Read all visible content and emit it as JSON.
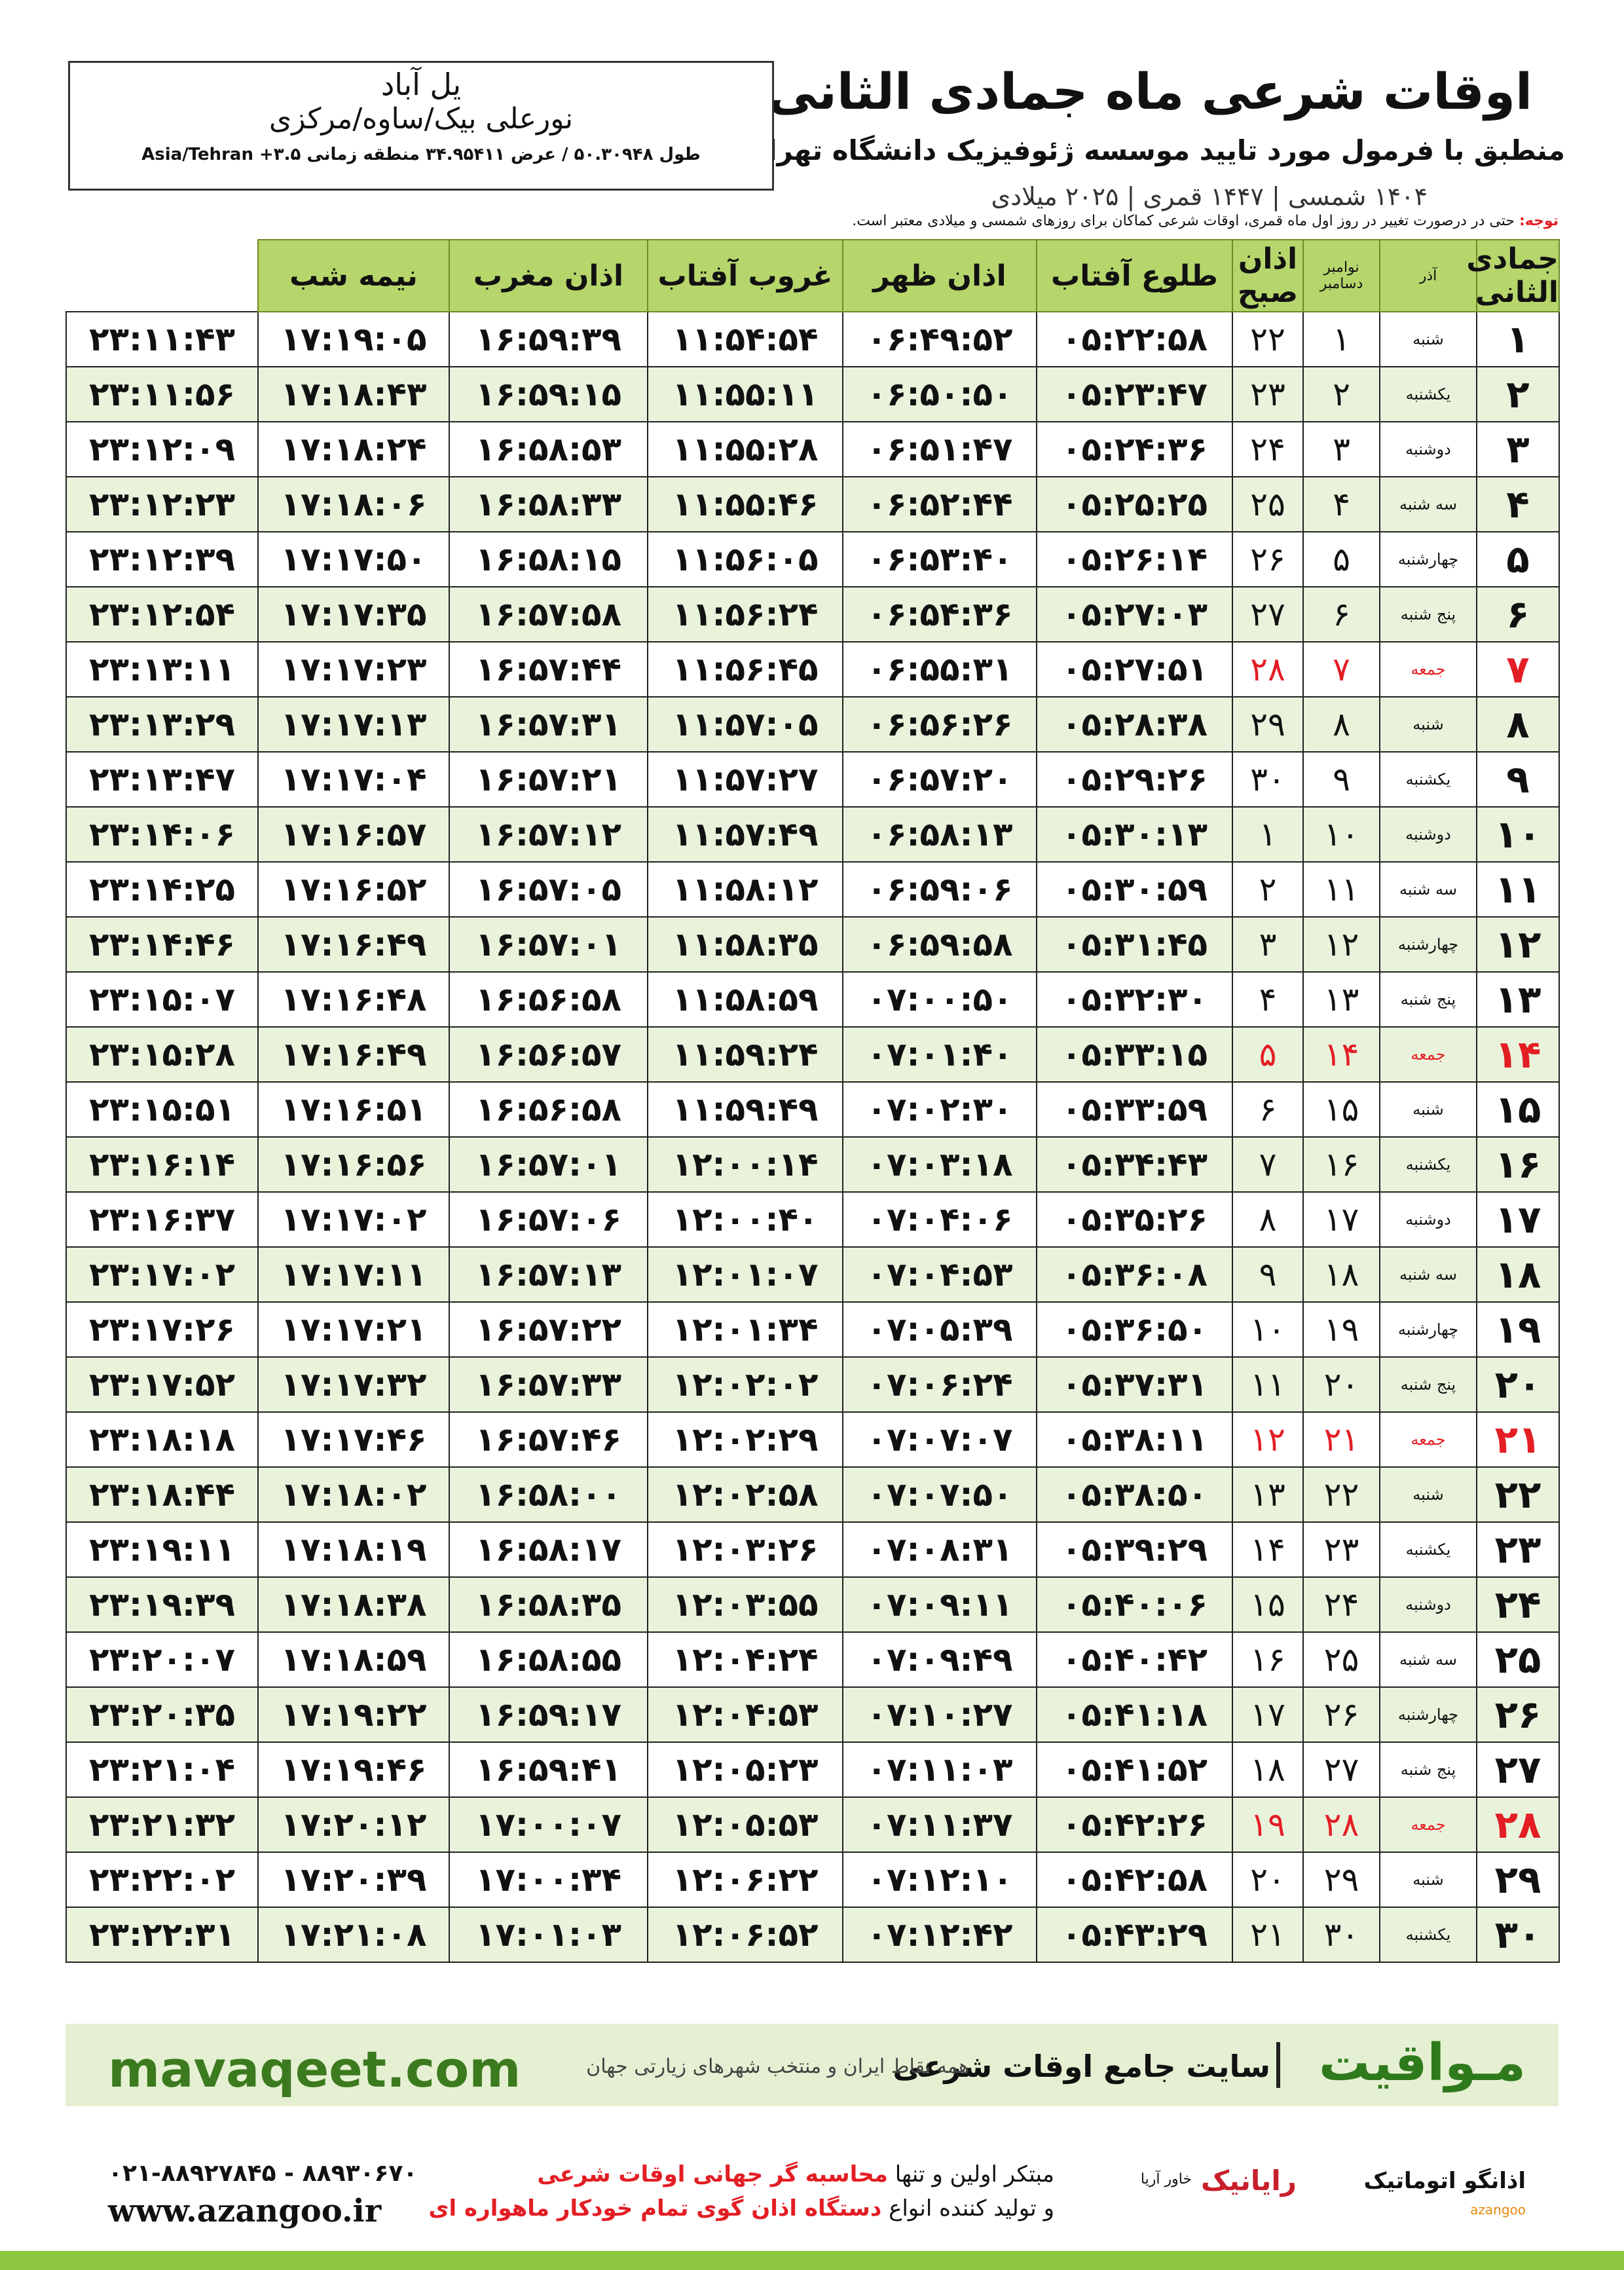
{
  "header": {
    "title": "اوقات شرعی ماه جمادی الثانی",
    "subtitle": "منطبق با فرمول مورد تایید موسسه ژئوفیزیک دانشگاه تهران",
    "dates": "۱۴۰۴ شمسی | ۱۴۴۷ قمری | ۲۰۲۵ میلادی"
  },
  "location": {
    "city": "یل آباد",
    "region": "نورعلی بیک/ساوه/مرکزی",
    "coords": "طول ۵۰.۳۰۹۴۸ / عرض ۳۴.۹۵۴۱۱ منطقه زمانی ۳.۵+ Asia/Tehran"
  },
  "note": {
    "label": "توجه:",
    "text": "حتی در درصورت تغییر در روز اول ماه قمری، اوقات شرعی کماکان برای روزهای شمسی و میلادی معتبر است."
  },
  "table": {
    "header": [
      "جمادی الثانی",
      "آذر",
      [
        "نوامبر",
        "دسامبر"
      ],
      "اذان صبح",
      "طلوع آفتاب",
      "اذان ظهر",
      "غروب آفتاب",
      "اذان مغرب",
      "نیمه شب"
    ],
    "rows": [
      {
        "color": "#111111",
        "cells": [
          "۱",
          "شنبه",
          "۱",
          "۲۲",
          "۰۵:۲۲:۵۸",
          "۰۶:۴۹:۵۲",
          "۱۱:۵۴:۵۴",
          "۱۶:۵۹:۳۹",
          "۱۷:۱۹:۰۵",
          "۲۳:۱۱:۴۳"
        ]
      },
      {
        "color": "#111111",
        "cells": [
          "۲",
          "یکشنبه",
          "۲",
          "۲۳",
          "۰۵:۲۳:۴۷",
          "۰۶:۵۰:۵۰",
          "۱۱:۵۵:۱۱",
          "۱۶:۵۹:۱۵",
          "۱۷:۱۸:۴۳",
          "۲۳:۱۱:۵۶"
        ]
      },
      {
        "color": "#111111",
        "cells": [
          "۳",
          "دوشنبه",
          "۳",
          "۲۴",
          "۰۵:۲۴:۳۶",
          "۰۶:۵۱:۴۷",
          "۱۱:۵۵:۲۸",
          "۱۶:۵۸:۵۳",
          "۱۷:۱۸:۲۴",
          "۲۳:۱۲:۰۹"
        ]
      },
      {
        "color": "#111111",
        "cells": [
          "۴",
          "سه شنبه",
          "۴",
          "۲۵",
          "۰۵:۲۵:۲۵",
          "۰۶:۵۲:۴۴",
          "۱۱:۵۵:۴۶",
          "۱۶:۵۸:۳۳",
          "۱۷:۱۸:۰۶",
          "۲۳:۱۲:۲۳"
        ]
      },
      {
        "color": "#111111",
        "cells": [
          "۵",
          "چهارشنبه",
          "۵",
          "۲۶",
          "۰۵:۲۶:۱۴",
          "۰۶:۵۳:۴۰",
          "۱۱:۵۶:۰۵",
          "۱۶:۵۸:۱۵",
          "۱۷:۱۷:۵۰",
          "۲۳:۱۲:۳۹"
        ]
      },
      {
        "color": "#111111",
        "cells": [
          "۶",
          "پنج شنبه",
          "۶",
          "۲۷",
          "۰۵:۲۷:۰۳",
          "۰۶:۵۴:۳۶",
          "۱۱:۵۶:۲۴",
          "۱۶:۵۷:۵۸",
          "۱۷:۱۷:۳۵",
          "۲۳:۱۲:۵۴"
        ]
      },
      {
        "color": "#e31e24",
        "cells": [
          "۷",
          "جمعه",
          "۷",
          "۲۸",
          "۰۵:۲۷:۵۱",
          "۰۶:۵۵:۳۱",
          "۱۱:۵۶:۴۵",
          "۱۶:۵۷:۴۴",
          "۱۷:۱۷:۲۳",
          "۲۳:۱۳:۱۱"
        ]
      },
      {
        "color": "#111111",
        "cells": [
          "۸",
          "شنبه",
          "۸",
          "۲۹",
          "۰۵:۲۸:۳۸",
          "۰۶:۵۶:۲۶",
          "۱۱:۵۷:۰۵",
          "۱۶:۵۷:۳۱",
          "۱۷:۱۷:۱۳",
          "۲۳:۱۳:۲۹"
        ]
      },
      {
        "color": "#111111",
        "cells": [
          "۹",
          "یکشنبه",
          "۹",
          "۳۰",
          "۰۵:۲۹:۲۶",
          "۰۶:۵۷:۲۰",
          "۱۱:۵۷:۲۷",
          "۱۶:۵۷:۲۱",
          "۱۷:۱۷:۰۴",
          "۲۳:۱۳:۴۷"
        ]
      },
      {
        "color": "#111111",
        "cells": [
          "۱۰",
          "دوشنبه",
          "۱۰",
          "۱",
          "۰۵:۳۰:۱۳",
          "۰۶:۵۸:۱۳",
          "۱۱:۵۷:۴۹",
          "۱۶:۵۷:۱۲",
          "۱۷:۱۶:۵۷",
          "۲۳:۱۴:۰۶"
        ]
      },
      {
        "color": "#111111",
        "cells": [
          "۱۱",
          "سه شنبه",
          "۱۱",
          "۲",
          "۰۵:۳۰:۵۹",
          "۰۶:۵۹:۰۶",
          "۱۱:۵۸:۱۲",
          "۱۶:۵۷:۰۵",
          "۱۷:۱۶:۵۲",
          "۲۳:۱۴:۲۵"
        ]
      },
      {
        "color": "#111111",
        "cells": [
          "۱۲",
          "چهارشنبه",
          "۱۲",
          "۳",
          "۰۵:۳۱:۴۵",
          "۰۶:۵۹:۵۸",
          "۱۱:۵۸:۳۵",
          "۱۶:۵۷:۰۱",
          "۱۷:۱۶:۴۹",
          "۲۳:۱۴:۴۶"
        ]
      },
      {
        "color": "#111111",
        "cells": [
          "۱۳",
          "پنج شنبه",
          "۱۳",
          "۴",
          "۰۵:۳۲:۳۰",
          "۰۷:۰۰:۵۰",
          "۱۱:۵۸:۵۹",
          "۱۶:۵۶:۵۸",
          "۱۷:۱۶:۴۸",
          "۲۳:۱۵:۰۷"
        ]
      },
      {
        "color": "#e31e24",
        "cells": [
          "۱۴",
          "جمعه",
          "۱۴",
          "۵",
          "۰۵:۳۳:۱۵",
          "۰۷:۰۱:۴۰",
          "۱۱:۵۹:۲۴",
          "۱۶:۵۶:۵۷",
          "۱۷:۱۶:۴۹",
          "۲۳:۱۵:۲۸"
        ]
      },
      {
        "color": "#111111",
        "cells": [
          "۱۵",
          "شنبه",
          "۱۵",
          "۶",
          "۰۵:۳۳:۵۹",
          "۰۷:۰۲:۳۰",
          "۱۱:۵۹:۴۹",
          "۱۶:۵۶:۵۸",
          "۱۷:۱۶:۵۱",
          "۲۳:۱۵:۵۱"
        ]
      },
      {
        "color": "#111111",
        "cells": [
          "۱۶",
          "یکشنبه",
          "۱۶",
          "۷",
          "۰۵:۳۴:۴۳",
          "۰۷:۰۳:۱۸",
          "۱۲:۰۰:۱۴",
          "۱۶:۵۷:۰۱",
          "۱۷:۱۶:۵۶",
          "۲۳:۱۶:۱۴"
        ]
      },
      {
        "color": "#111111",
        "cells": [
          "۱۷",
          "دوشنبه",
          "۱۷",
          "۸",
          "۰۵:۳۵:۲۶",
          "۰۷:۰۴:۰۶",
          "۱۲:۰۰:۴۰",
          "۱۶:۵۷:۰۶",
          "۱۷:۱۷:۰۲",
          "۲۳:۱۶:۳۷"
        ]
      },
      {
        "color": "#111111",
        "cells": [
          "۱۸",
          "سه شنبه",
          "۱۸",
          "۹",
          "۰۵:۳۶:۰۸",
          "۰۷:۰۴:۵۳",
          "۱۲:۰۱:۰۷",
          "۱۶:۵۷:۱۳",
          "۱۷:۱۷:۱۱",
          "۲۳:۱۷:۰۲"
        ]
      },
      {
        "color": "#111111",
        "cells": [
          "۱۹",
          "چهارشنبه",
          "۱۹",
          "۱۰",
          "۰۵:۳۶:۵۰",
          "۰۷:۰۵:۳۹",
          "۱۲:۰۱:۳۴",
          "۱۶:۵۷:۲۲",
          "۱۷:۱۷:۲۱",
          "۲۳:۱۷:۲۶"
        ]
      },
      {
        "color": "#111111",
        "cells": [
          "۲۰",
          "پنج شنبه",
          "۲۰",
          "۱۱",
          "۰۵:۳۷:۳۱",
          "۰۷:۰۶:۲۴",
          "۱۲:۰۲:۰۲",
          "۱۶:۵۷:۳۳",
          "۱۷:۱۷:۳۲",
          "۲۳:۱۷:۵۲"
        ]
      },
      {
        "color": "#e31e24",
        "cells": [
          "۲۱",
          "جمعه",
          "۲۱",
          "۱۲",
          "۰۵:۳۸:۱۱",
          "۰۷:۰۷:۰۷",
          "۱۲:۰۲:۲۹",
          "۱۶:۵۷:۴۶",
          "۱۷:۱۷:۴۶",
          "۲۳:۱۸:۱۸"
        ]
      },
      {
        "color": "#111111",
        "cells": [
          "۲۲",
          "شنبه",
          "۲۲",
          "۱۳",
          "۰۵:۳۸:۵۰",
          "۰۷:۰۷:۵۰",
          "۱۲:۰۲:۵۸",
          "۱۶:۵۸:۰۰",
          "۱۷:۱۸:۰۲",
          "۲۳:۱۸:۴۴"
        ]
      },
      {
        "color": "#111111",
        "cells": [
          "۲۳",
          "یکشنبه",
          "۲۳",
          "۱۴",
          "۰۵:۳۹:۲۹",
          "۰۷:۰۸:۳۱",
          "۱۲:۰۳:۲۶",
          "۱۶:۵۸:۱۷",
          "۱۷:۱۸:۱۹",
          "۲۳:۱۹:۱۱"
        ]
      },
      {
        "color": "#111111",
        "cells": [
          "۲۴",
          "دوشنبه",
          "۲۴",
          "۱۵",
          "۰۵:۴۰:۰۶",
          "۰۷:۰۹:۱۱",
          "۱۲:۰۳:۵۵",
          "۱۶:۵۸:۳۵",
          "۱۷:۱۸:۳۸",
          "۲۳:۱۹:۳۹"
        ]
      },
      {
        "color": "#111111",
        "cells": [
          "۲۵",
          "سه شنبه",
          "۲۵",
          "۱۶",
          "۰۵:۴۰:۴۲",
          "۰۷:۰۹:۴۹",
          "۱۲:۰۴:۲۴",
          "۱۶:۵۸:۵۵",
          "۱۷:۱۸:۵۹",
          "۲۳:۲۰:۰۷"
        ]
      },
      {
        "color": "#111111",
        "cells": [
          "۲۶",
          "چهارشنبه",
          "۲۶",
          "۱۷",
          "۰۵:۴۱:۱۸",
          "۰۷:۱۰:۲۷",
          "۱۲:۰۴:۵۳",
          "۱۶:۵۹:۱۷",
          "۱۷:۱۹:۲۲",
          "۲۳:۲۰:۳۵"
        ]
      },
      {
        "color": "#111111",
        "cells": [
          "۲۷",
          "پنج شنبه",
          "۲۷",
          "۱۸",
          "۰۵:۴۱:۵۲",
          "۰۷:۱۱:۰۳",
          "۱۲:۰۵:۲۳",
          "۱۶:۵۹:۴۱",
          "۱۷:۱۹:۴۶",
          "۲۳:۲۱:۰۴"
        ]
      },
      {
        "color": "#e31e24",
        "cells": [
          "۲۸",
          "جمعه",
          "۲۸",
          "۱۹",
          "۰۵:۴۲:۲۶",
          "۰۷:۱۱:۳۷",
          "۱۲:۰۵:۵۳",
          "۱۷:۰۰:۰۷",
          "۱۷:۲۰:۱۲",
          "۲۳:۲۱:۳۲"
        ]
      },
      {
        "color": "#111111",
        "cells": [
          "۲۹",
          "شنبه",
          "۲۹",
          "۲۰",
          "۰۵:۴۲:۵۸",
          "۰۷:۱۲:۱۰",
          "۱۲:۰۶:۲۲",
          "۱۷:۰۰:۳۴",
          "۱۷:۲۰:۳۹",
          "۲۳:۲۲:۰۲"
        ]
      },
      {
        "color": "#111111",
        "cells": [
          "۳۰",
          "یکشنبه",
          "۳۰",
          "۲۱",
          "۰۵:۴۳:۲۹",
          "۰۷:۱۲:۴۲",
          "۱۲:۰۶:۵۲",
          "۱۷:۰۱:۰۳",
          "۱۷:۲۱:۰۸",
          "۲۳:۲۲:۳۱"
        ]
      }
    ]
  },
  "banner": {
    "site": "mavaqeet.com",
    "brand": "مـواقیت",
    "slogan": "سایت جامع اوقات شرعی",
    "subtext": "همه نقاط ایران و منتخب شهرهای زیارتی جهان"
  },
  "footer": {
    "phone": "۰۲۱-۸۸۹۲۷۸۴۵ - ۸۸۹۳۰۶۷۰",
    "web": "www.azangoo.ir",
    "line1": [
      "مبتکر اولین و تنها",
      "محاسبه گر جهانی اوقات شرعی"
    ],
    "line2": [
      "و تولید کننده انواع",
      "دستگاه اذان گوی تمام خودکار ماهواره ای"
    ],
    "logo_rayanik": "رایانیک",
    "logo_khavar": "خاور آریا",
    "logo_azangoo": "اذانگو اتوماتیک",
    "logo_azangoo_en": "azangoo"
  }
}
